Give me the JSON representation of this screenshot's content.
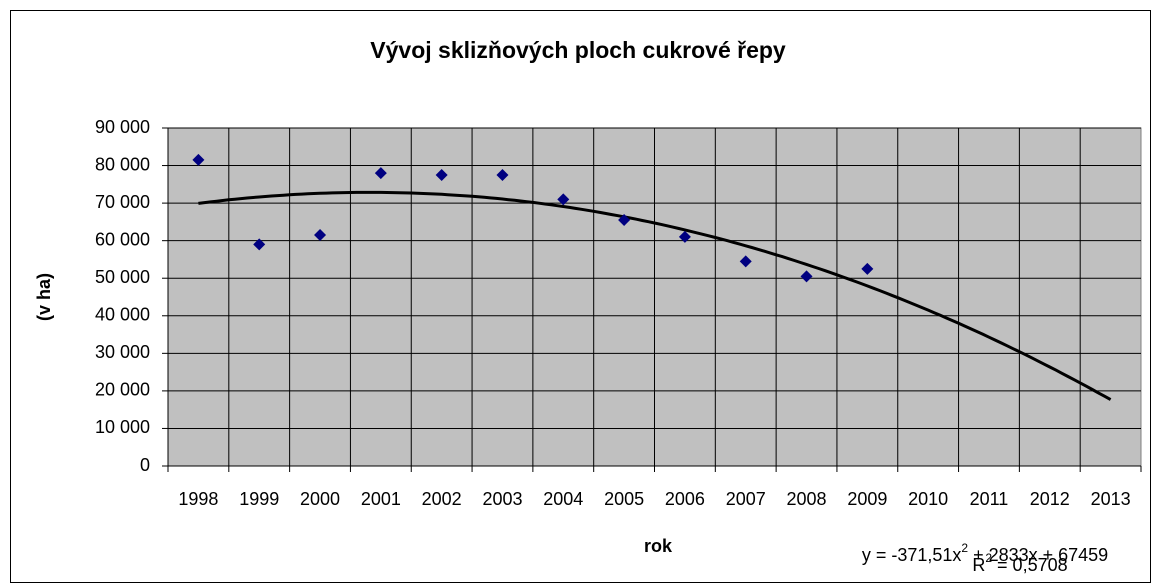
{
  "chart_data": {
    "type": "scatter",
    "title": "Vývoj sklizňových ploch cukrové řepy",
    "x_label": "rok",
    "y_label": "(v ha)",
    "categories": [
      "1998",
      "1999",
      "2000",
      "2001",
      "2002",
      "2003",
      "2004",
      "2005",
      "2006",
      "2007",
      "2008",
      "2009",
      "2010",
      "2011",
      "2012",
      "2013"
    ],
    "values": [
      81500,
      59000,
      61500,
      78000,
      77500,
      77500,
      71000,
      65500,
      61000,
      54500,
      50500,
      52500,
      null,
      null,
      null,
      null
    ],
    "color": "#000080",
    "ylim": [
      0,
      90000
    ],
    "yticks": [
      0,
      {
        "value": 10000,
        "label": "10 000"
      },
      {
        "value": 20000,
        "label": "20 000"
      },
      {
        "value": 30000,
        "label": "30 000"
      },
      {
        "value": 40000,
        "label": "40 000"
      },
      {
        "value": 50000,
        "label": "50 000"
      },
      {
        "value": 60000,
        "label": "60 000"
      },
      {
        "value": 70000,
        "label": "70 000"
      },
      {
        "value": 80000,
        "label": "80 000"
      },
      {
        "value": 90000,
        "label": "90 000"
      }
    ],
    "grid": true,
    "plot_background": "#c0c0c0",
    "trendline": {
      "type": "polynomial",
      "coefficients": [
        -371.51,
        2833,
        67459
      ],
      "r_squared": 0.5708,
      "color": "#000000",
      "equation": [
        "y = -371,51x",
        "2",
        " + 2833x + 67459"
      ],
      "r_squared_label": [
        "R",
        "2",
        " = 0,5708"
      ]
    }
  }
}
